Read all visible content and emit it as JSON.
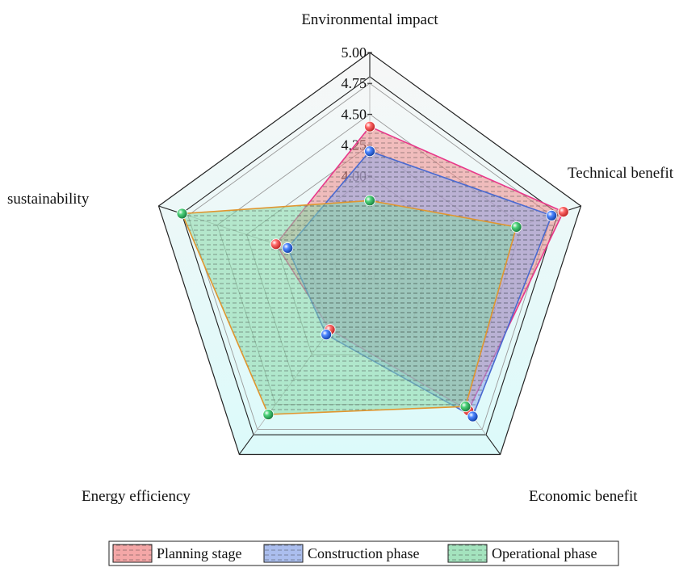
{
  "chart_data": {
    "type": "radar",
    "axes": [
      "Environmental impact",
      "Technical benefit",
      "Economic benefit",
      "Energy efficiency",
      "sustainability"
    ],
    "r_ticks": [
      "4.00",
      "4.25",
      "4.50",
      "4.75",
      "5.00"
    ],
    "r_range": [
      3.2,
      5.0
    ],
    "series": [
      {
        "name": "Planning stage",
        "values": [
          4.4,
          4.85,
          4.56,
          3.75,
          4.0
        ],
        "fill": "#f08a8a",
        "stroke": "#e8388a",
        "marker": "#e53935"
      },
      {
        "name": "Construction phase",
        "values": [
          4.2,
          4.75,
          4.62,
          3.8,
          3.9
        ],
        "fill": "#8fa8e8",
        "stroke": "#4a6ad0",
        "marker": "#1e5bd8"
      },
      {
        "name": "Operational phase",
        "values": [
          3.8,
          4.45,
          4.52,
          4.6,
          4.8
        ],
        "fill": "#86d9a8",
        "stroke": "#e0962f",
        "marker": "#28a745"
      }
    ],
    "grid": true,
    "legend_position": "bottom"
  }
}
